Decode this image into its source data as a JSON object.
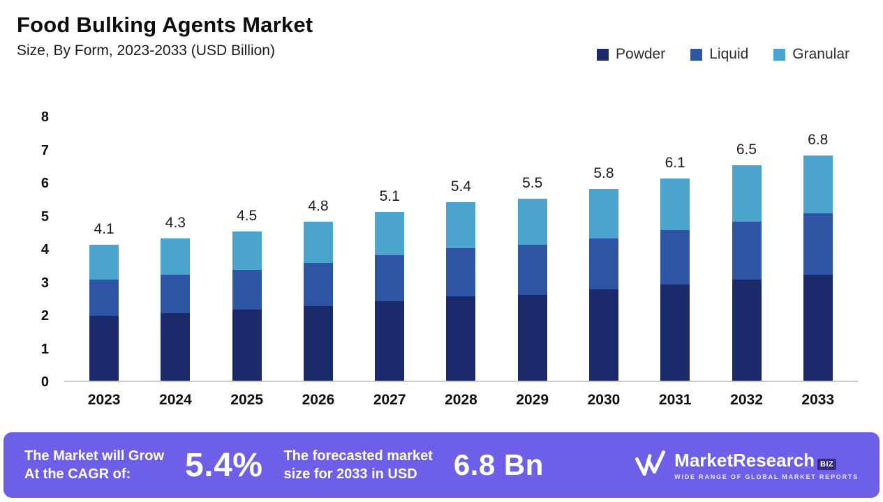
{
  "header": {
    "title": "Food Bulking Agents Market",
    "subtitle": "Size, By Form, 2023-2033 (USD Billion)"
  },
  "legend": [
    {
      "label": "Powder",
      "color": "#1b2a6b"
    },
    {
      "label": "Liquid",
      "color": "#2e55a4"
    },
    {
      "label": "Granular",
      "color": "#4ba4cb"
    }
  ],
  "chart_data": {
    "type": "bar",
    "stacked": true,
    "title": "Food Bulking Agents Market Size, By Form, 2023-2033 (USD Billion)",
    "categories": [
      "2023",
      "2024",
      "2025",
      "2026",
      "2027",
      "2028",
      "2029",
      "2030",
      "2031",
      "2032",
      "2033"
    ],
    "series": [
      {
        "name": "Powder",
        "color": "#1b2a6b",
        "values": [
          1.95,
          2.05,
          2.15,
          2.25,
          2.4,
          2.55,
          2.6,
          2.75,
          2.9,
          3.05,
          3.2
        ]
      },
      {
        "name": "Liquid",
        "color": "#2e55a4",
        "values": [
          1.1,
          1.15,
          1.2,
          1.3,
          1.4,
          1.45,
          1.5,
          1.55,
          1.65,
          1.75,
          1.85
        ]
      },
      {
        "name": "Granular",
        "color": "#4ba4cb",
        "values": [
          1.05,
          1.1,
          1.15,
          1.25,
          1.3,
          1.4,
          1.4,
          1.5,
          1.55,
          1.7,
          1.75
        ]
      }
    ],
    "totals": [
      "4.1",
      "4.3",
      "4.5",
      "4.8",
      "5.1",
      "5.4",
      "5.5",
      "5.8",
      "6.1",
      "6.5",
      "6.8"
    ],
    "xlabel": "",
    "ylabel": "",
    "y_ticks": [
      0,
      1,
      2,
      3,
      4,
      5,
      6,
      7,
      8
    ],
    "ylim": [
      0,
      8
    ],
    "grid": false,
    "legend_position": "top-right"
  },
  "banner": {
    "background": "#6d5fe8",
    "cagr_label_line1": "The Market will Grow",
    "cagr_label_line2": "At the CAGR of:",
    "cagr_value": "5.4%",
    "forecast_label_line1": "The forecasted market",
    "forecast_label_line2": "size for 2033 in USD",
    "forecast_value": "6.8 Bn",
    "logo": {
      "name": "MarketResearch",
      "suffix": "BIZ",
      "tagline": "WIDE RANGE OF GLOBAL MARKET REPORTS"
    }
  }
}
